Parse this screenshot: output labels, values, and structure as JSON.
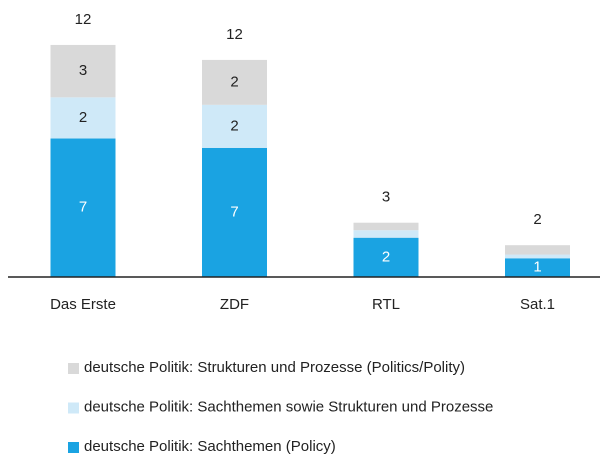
{
  "chart_data": {
    "type": "stacked_bar",
    "categories": [
      "Das Erste",
      "ZDF",
      "RTL",
      "Sat.1"
    ],
    "series": [
      {
        "name": "deutsche Politik: Sachthemen (Policy)",
        "color": "#1aa3e2",
        "values": [
          7.4,
          6.9,
          2.1,
          1.0
        ],
        "value_labels": [
          "7",
          "7",
          "2",
          "1"
        ]
      },
      {
        "name": "deutsche Politik: Sachthemen sowie Strukturen und Prozesse",
        "color": "#cfe9f8",
        "values": [
          2.2,
          2.3,
          0.4,
          0.2
        ],
        "value_labels": [
          "2",
          "2",
          null,
          null
        ]
      },
      {
        "name": "deutsche Politik: Strukturen und Prozesse (Politics/Polity)",
        "color": "#d9d9d9",
        "values": [
          2.8,
          2.4,
          0.4,
          0.5
        ],
        "value_labels": [
          "3",
          "2",
          null,
          null
        ]
      }
    ],
    "totals": [
      "12",
      "12",
      "3",
      "2"
    ],
    "ylim": [
      0,
      14
    ]
  }
}
